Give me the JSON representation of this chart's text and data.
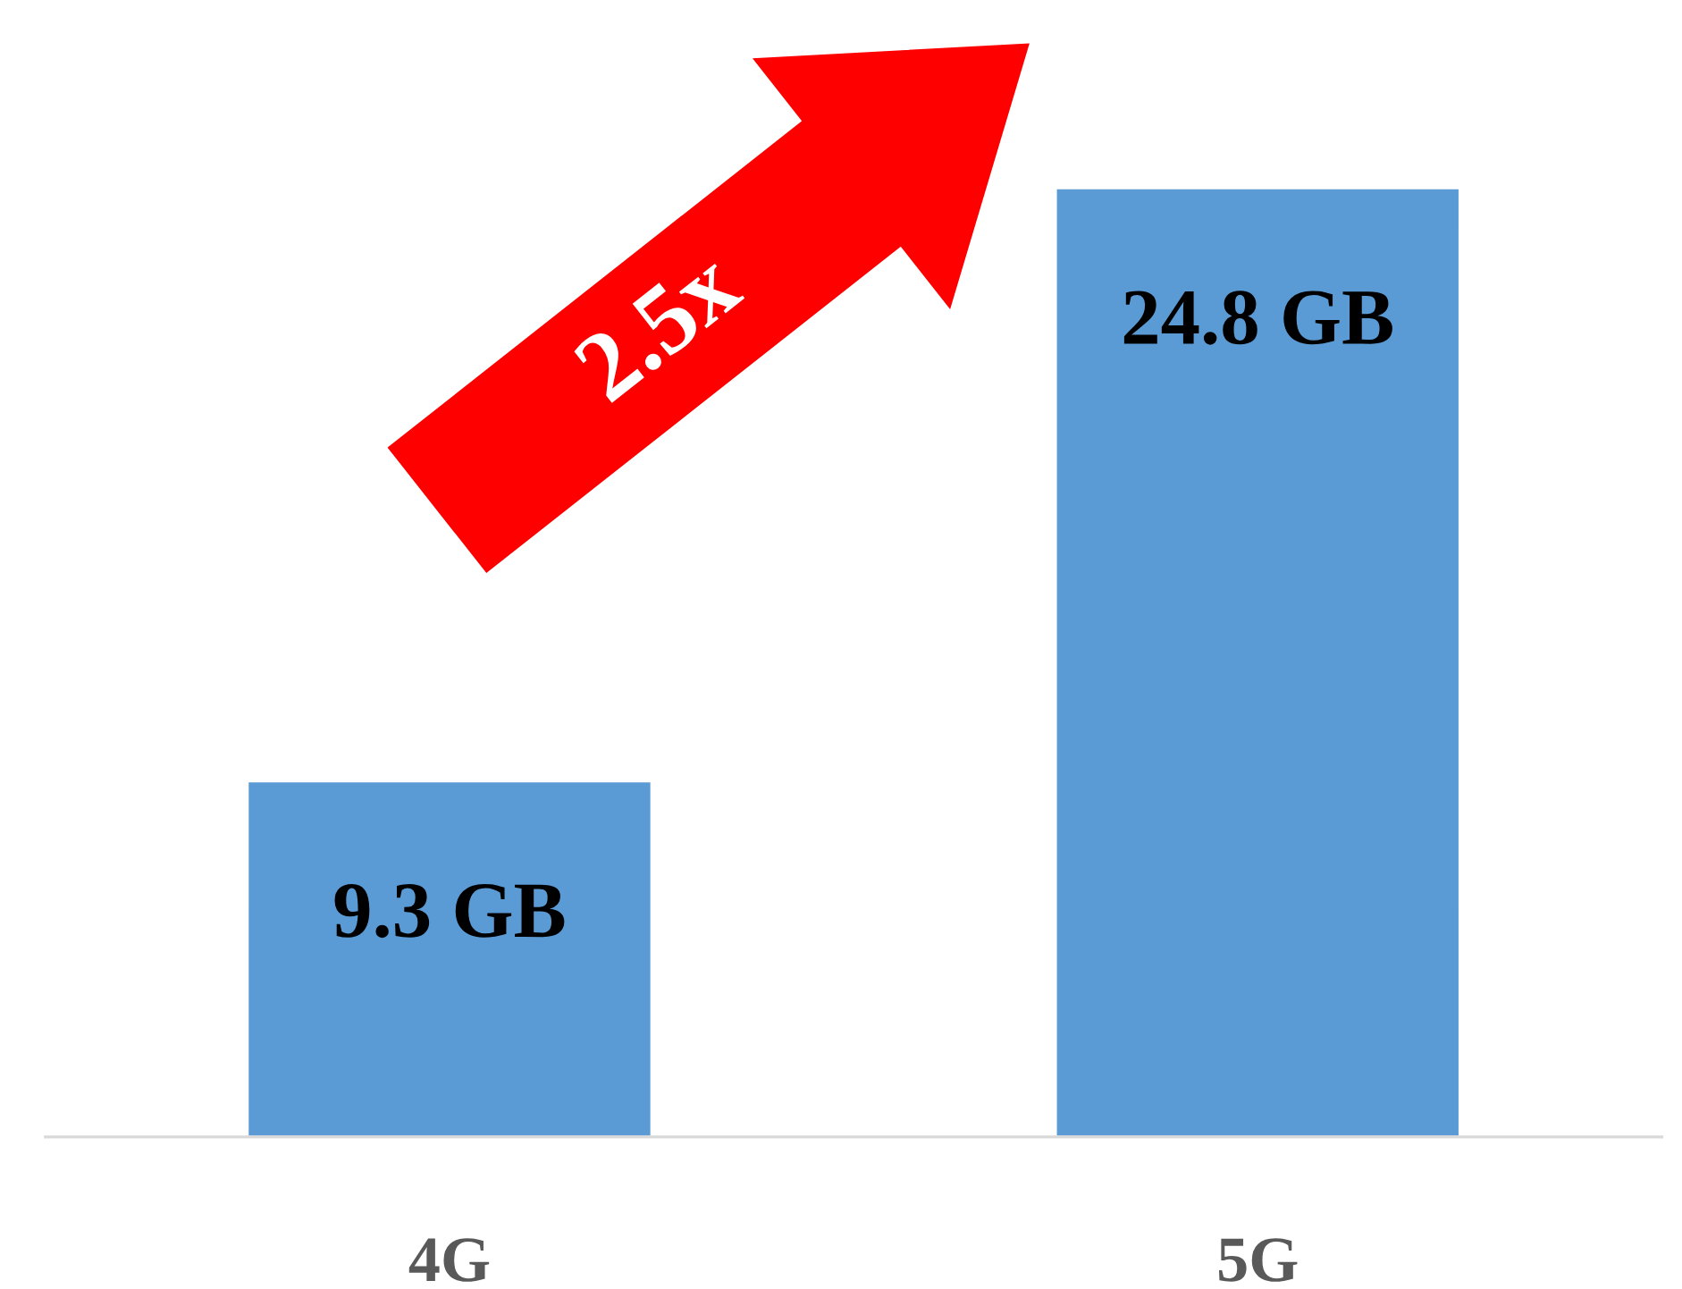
{
  "chart_data": {
    "type": "bar",
    "categories": [
      "4G",
      "5G"
    ],
    "values": [
      9.3,
      24.8
    ],
    "value_labels": [
      "9.3 GB",
      "24.8 GB"
    ],
    "color": "#5b9bd5",
    "tick_labels": "x",
    "grid": false,
    "legend": false,
    "annotations": [
      "2.5x"
    ]
  }
}
